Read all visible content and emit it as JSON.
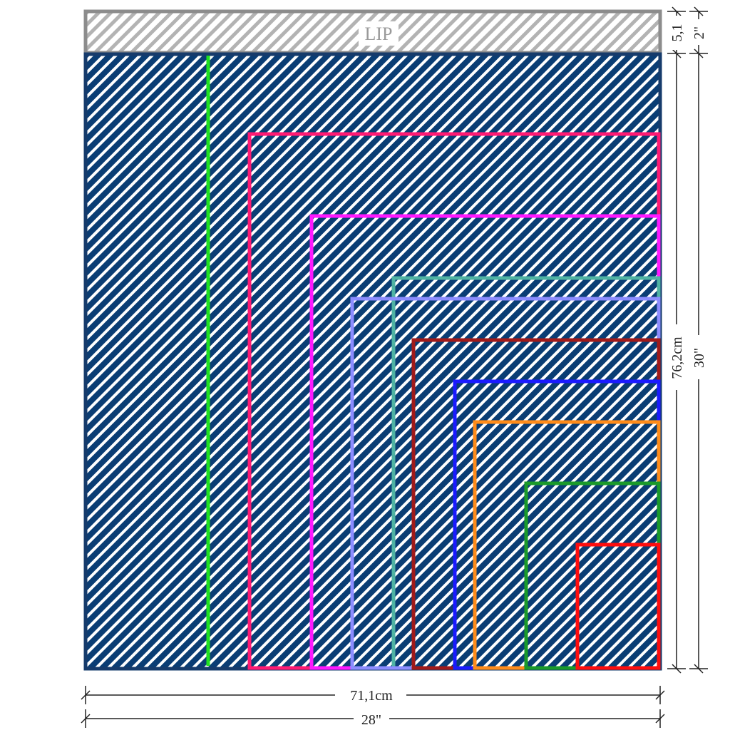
{
  "lip": {
    "label": "LIP",
    "height_cm": "5,1",
    "height_in": "2\""
  },
  "sheet": {
    "height_cm": "76,2cm",
    "height_in": "30\"",
    "width_cm": "71,1cm",
    "width_in": "28\""
  },
  "colors": {
    "fill": "#0a3d74",
    "hatch": "#ffffff",
    "lip_fill": "#b3b3b3",
    "lip_border": "#8c8c8c",
    "outline": "#163b6b"
  },
  "nested_outlines": [
    {
      "color": "#1fe11f"
    },
    {
      "color": "#ff1a73"
    },
    {
      "color": "#ff18ff"
    },
    {
      "color": "#4fb3a3"
    },
    {
      "color": "#8c8cff"
    },
    {
      "color": "#a01a1a"
    },
    {
      "color": "#1a1aff"
    },
    {
      "color": "#ff8c1a"
    },
    {
      "color": "#1a9a2a"
    },
    {
      "color": "#ff0d0d"
    }
  ]
}
